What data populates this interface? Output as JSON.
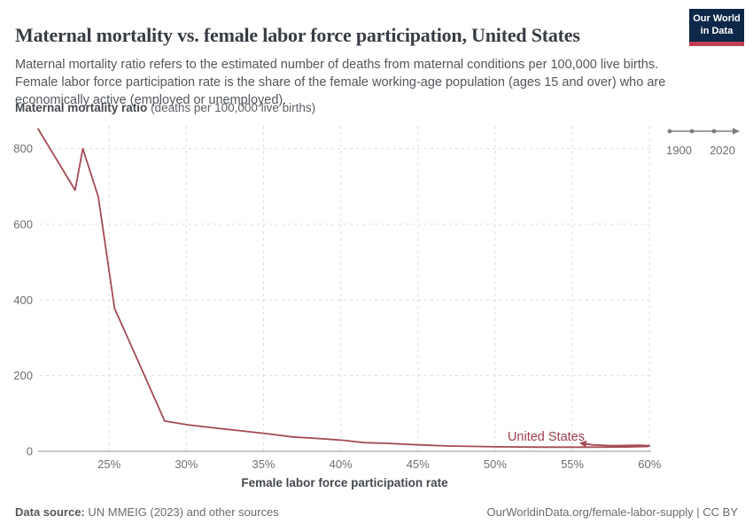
{
  "header": {
    "title": "Maternal mortality vs. female labor force participation, United States",
    "subtitle": "Maternal mortality ratio refers to the estimated number of deaths from maternal conditions per 100,000 live births. Female labor force participation rate is the share of the female working-age population (ages 15 and over) who are economically active (employed or unemployed).",
    "logo_line1": "Our World",
    "logo_line2": "in Data",
    "logo_bg_color": "#0d2848",
    "logo_stripe_color": "#c13d54"
  },
  "timeline": {
    "start_label": "1900",
    "end_label": "2020"
  },
  "chart_data": {
    "type": "line",
    "title": "Maternal mortality vs. female labor force participation, United States",
    "xlabel": "Female labor force participation rate",
    "ylabel": "Maternal mortality ratio",
    "ylabel_unit": "(deaths per 100,000 live births)",
    "xlim": [
      20.4,
      60.1
    ],
    "ylim": [
      0,
      860
    ],
    "grid": true,
    "x_ticks": [
      {
        "value": 25,
        "label": "25%"
      },
      {
        "value": 30,
        "label": "30%"
      },
      {
        "value": 35,
        "label": "35%"
      },
      {
        "value": 40,
        "label": "40%"
      },
      {
        "value": 45,
        "label": "45%"
      },
      {
        "value": 50,
        "label": "50%"
      },
      {
        "value": 55,
        "label": "55%"
      },
      {
        "value": 60,
        "label": "60%"
      }
    ],
    "y_ticks": [
      {
        "value": 0,
        "label": "0"
      },
      {
        "value": 200,
        "label": "200"
      },
      {
        "value": 400,
        "label": "400"
      },
      {
        "value": 600,
        "label": "600"
      },
      {
        "value": 800,
        "label": "800"
      }
    ],
    "series": [
      {
        "name": "United States",
        "color": "#a44b55",
        "end_arrow": true,
        "points": [
          [
            20.4,
            852
          ],
          [
            22.8,
            690
          ],
          [
            23.3,
            800
          ],
          [
            24.3,
            672
          ],
          [
            25.35,
            378
          ],
          [
            26.8,
            245
          ],
          [
            28.6,
            80
          ],
          [
            30.1,
            70
          ],
          [
            32.0,
            61
          ],
          [
            33.6,
            54
          ],
          [
            35.1,
            47
          ],
          [
            36.9,
            38
          ],
          [
            38.5,
            34
          ],
          [
            40.2,
            29
          ],
          [
            41.5,
            23
          ],
          [
            43.0,
            21
          ],
          [
            45.0,
            17
          ],
          [
            47.0,
            14
          ],
          [
            50.0,
            12
          ],
          [
            53.0,
            11
          ],
          [
            56.0,
            11
          ],
          [
            58.5,
            11.5
          ],
          [
            59.9,
            13
          ],
          [
            60.0,
            15
          ],
          [
            59.3,
            16
          ],
          [
            57.5,
            15
          ],
          [
            56.3,
            17
          ],
          [
            55.9,
            19.5
          ]
        ]
      }
    ]
  },
  "footer": {
    "data_source_label": "Data source:",
    "data_source_value": " UN MMEIG (2023) and other sources",
    "credit": "OurWorldinData.org/female-labor-supply | CC BY"
  }
}
